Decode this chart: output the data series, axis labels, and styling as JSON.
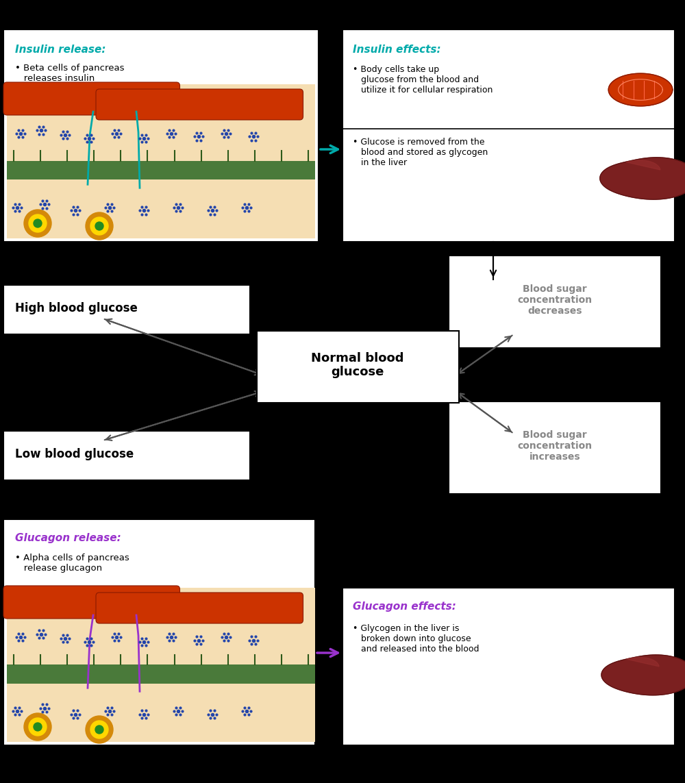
{
  "bg_color": "#000000",
  "insulin_release_title": "Insulin release:",
  "insulin_release_text": "• Beta cells of pancreas\n   releases insulin",
  "insulin_effects_title": "Insulin effects:",
  "insulin_effects_text1": "• Body cells take up\n   glucose from the blood and\n   utilize it for cellular respiration",
  "insulin_effects_text2": "• Glucose is removed from the\n   blood and stored as glycogen\n   in the liver",
  "high_glucose_label": "High blood glucose",
  "normal_glucose_label": "Normal blood\nglucose",
  "low_glucose_label": "Low blood glucose",
  "blood_conc_decreases": "Blood sugar\nconcentration\ndecreases",
  "blood_conc_increases": "Blood sugar\nconcentration\nincreases",
  "glucagon_release_title": "Glucagon release:",
  "glucagon_release_text": "• Alpha cells of pancreas\n   release glucagon",
  "glucagon_effects_title": "Glucagon effects:",
  "glucagon_effects_text": "• Glycogen in the liver is\n   broken down into glucose\n   and released into the blood",
  "teal_color": "#00AAAA",
  "purple_color": "#9932CC",
  "white": "#FFFFFF",
  "black": "#000000",
  "gray_text": "#888888",
  "red_vessel": "#CC3300",
  "dark_red": "#8B1A00",
  "tan": "#F5DEB3",
  "dark_green": "#4A7A3A",
  "blue_dot": "#2244AA",
  "orange_islet": "#D4890A",
  "yellow_islet": "#FFD700",
  "liver_color": "#7B2020",
  "dark_liver": "#5A1010"
}
